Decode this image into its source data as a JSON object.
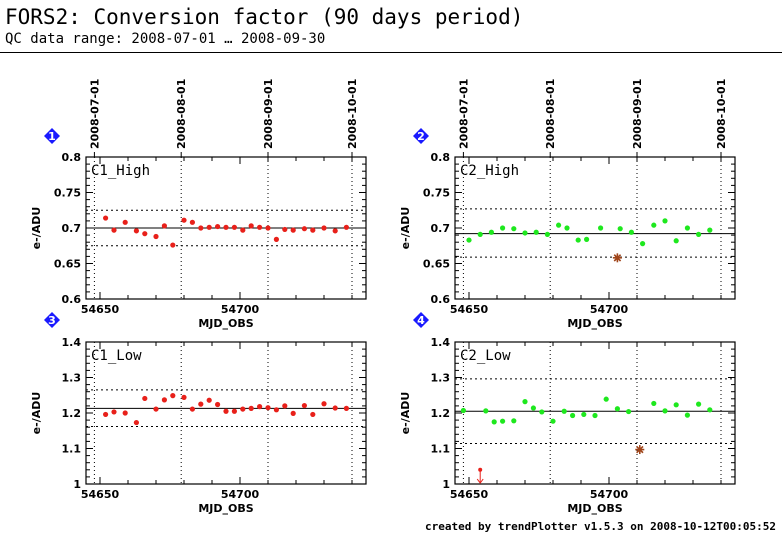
{
  "header": {
    "title": "FORS2: Conversion factor (90 days period)",
    "subtitle": "QC data range: 2008-07-01 … 2008-09-30"
  },
  "footer": {
    "text": "created by trendPlotter v1.5.3 on 2008-10-12T00:05:52"
  },
  "colors": {
    "series": "#e8201a",
    "series_green": "#1ee81e",
    "outlier": "#a0451a",
    "badge": "#1a1aff"
  },
  "chart_data": [
    {
      "type": "scatter",
      "panel": "1",
      "label": "C1_High",
      "xlabel": "MJD_OBS",
      "ylabel": "e-/ADU",
      "xlim": [
        54645,
        54745
      ],
      "ylim": [
        0.6,
        0.8
      ],
      "xticks": [
        54650,
        54700
      ],
      "yticks": [
        0.6,
        0.65,
        0.7,
        0.75,
        0.8
      ],
      "ytick_labels": [
        "0.6",
        "0.65",
        "0.7",
        "0.75",
        "0.8"
      ],
      "date_ticks": [
        {
          "x": 54648,
          "label": "2008-07-01"
        },
        {
          "x": 54679,
          "label": "2008-08-01"
        },
        {
          "x": 54710,
          "label": "2008-09-01"
        },
        {
          "x": 54740,
          "label": "2008-10-01"
        }
      ],
      "ref_line": 0.7,
      "band": [
        0.675,
        0.725
      ],
      "color": "#e8201a",
      "x": [
        54652,
        54655,
        54659,
        54663,
        54666,
        54670,
        54673,
        54676,
        54680,
        54683,
        54686,
        54689,
        54692,
        54695,
        54698,
        54701,
        54704,
        54707,
        54710,
        54713,
        54716,
        54719,
        54723,
        54726,
        54730,
        54734,
        54738
      ],
      "y": [
        0.714,
        0.697,
        0.708,
        0.696,
        0.692,
        0.688,
        0.703,
        0.676,
        0.711,
        0.708,
        0.7,
        0.701,
        0.702,
        0.701,
        0.701,
        0.697,
        0.703,
        0.701,
        0.7,
        0.684,
        0.698,
        0.697,
        0.699,
        0.697,
        0.7,
        0.696,
        0.701
      ],
      "outliers": []
    },
    {
      "type": "scatter",
      "panel": "2",
      "label": "C2_High",
      "xlabel": "MJD_OBS",
      "ylabel": "e-/ADU",
      "xlim": [
        54645,
        54745
      ],
      "ylim": [
        0.6,
        0.8
      ],
      "xticks": [
        54650,
        54700
      ],
      "yticks": [
        0.6,
        0.65,
        0.7,
        0.75,
        0.8
      ],
      "ytick_labels": [
        "0.6",
        "0.65",
        "0.7",
        "0.75",
        "0.8"
      ],
      "date_ticks": [
        {
          "x": 54648,
          "label": "2008-07-01"
        },
        {
          "x": 54679,
          "label": "2008-08-01"
        },
        {
          "x": 54710,
          "label": "2008-09-01"
        },
        {
          "x": 54740,
          "label": "2008-10-01"
        }
      ],
      "ref_line": 0.692,
      "band": [
        0.659,
        0.727
      ],
      "color": "#1ee81e",
      "x": [
        54650,
        54654,
        54658,
        54662,
        54666,
        54670,
        54674,
        54678,
        54682,
        54685,
        54689,
        54692,
        54697,
        54704,
        54708,
        54712,
        54716,
        54720,
        54724,
        54728,
        54732,
        54736
      ],
      "y": [
        0.683,
        0.691,
        0.694,
        0.7,
        0.699,
        0.693,
        0.694,
        0.691,
        0.704,
        0.7,
        0.683,
        0.684,
        0.7,
        0.699,
        0.694,
        0.678,
        0.704,
        0.71,
        0.682,
        0.7,
        0.691,
        0.697
      ],
      "outliers": [
        {
          "x": 54703,
          "y": 0.658
        }
      ]
    },
    {
      "type": "scatter",
      "panel": "3",
      "label": "C1_Low",
      "xlabel": "MJD_OBS",
      "ylabel": "e-/ADU",
      "xlim": [
        54645,
        54745
      ],
      "ylim": [
        1.0,
        1.4
      ],
      "xticks": [
        54650,
        54700
      ],
      "yticks": [
        1.0,
        1.1,
        1.2,
        1.3,
        1.4
      ],
      "ytick_labels": [
        "1",
        "1.1",
        "1.2",
        "1.3",
        "1.4"
      ],
      "ref_line": 1.213,
      "band": [
        1.162,
        1.265
      ],
      "color": "#e8201a",
      "x": [
        54652,
        54655,
        54659,
        54663,
        54666,
        54670,
        54673,
        54676,
        54680,
        54683,
        54686,
        54689,
        54692,
        54695,
        54698,
        54701,
        54704,
        54707,
        54710,
        54713,
        54716,
        54719,
        54723,
        54726,
        54730,
        54734,
        54738
      ],
      "y": [
        1.196,
        1.203,
        1.2,
        1.173,
        1.241,
        1.211,
        1.237,
        1.249,
        1.244,
        1.211,
        1.225,
        1.236,
        1.224,
        1.205,
        1.205,
        1.211,
        1.213,
        1.218,
        1.215,
        1.209,
        1.22,
        1.199,
        1.221,
        1.196,
        1.226,
        1.214,
        1.213
      ],
      "outliers": []
    },
    {
      "type": "scatter",
      "panel": "4",
      "label": "C2_Low",
      "xlabel": "MJD_OBS",
      "ylabel": "e-/ADU",
      "xlim": [
        54645,
        54745
      ],
      "ylim": [
        1.0,
        1.4
      ],
      "xticks": [
        54650,
        54700
      ],
      "yticks": [
        1.0,
        1.1,
        1.2,
        1.3,
        1.4
      ],
      "ytick_labels": [
        "1",
        "1.1",
        "1.2",
        "1.3",
        "1.4"
      ],
      "ref_line": 1.205,
      "band": [
        1.114,
        1.296
      ],
      "color": "#1ee81e",
      "x": [
        54648,
        54656,
        54659,
        54662,
        54666,
        54670,
        54673,
        54676,
        54680,
        54684,
        54687,
        54691,
        54695,
        54699,
        54703,
        54707,
        54716,
        54720,
        54724,
        54728,
        54732,
        54736
      ],
      "y": [
        1.207,
        1.206,
        1.175,
        1.177,
        1.178,
        1.232,
        1.214,
        1.203,
        1.177,
        1.205,
        1.193,
        1.196,
        1.193,
        1.239,
        1.212,
        1.204,
        1.227,
        1.206,
        1.223,
        1.194,
        1.225,
        1.209
      ],
      "outliers": [
        {
          "x": 54711,
          "y": 1.097
        }
      ],
      "offscale": [
        {
          "x": 54654,
          "y": 1.04
        }
      ]
    }
  ]
}
